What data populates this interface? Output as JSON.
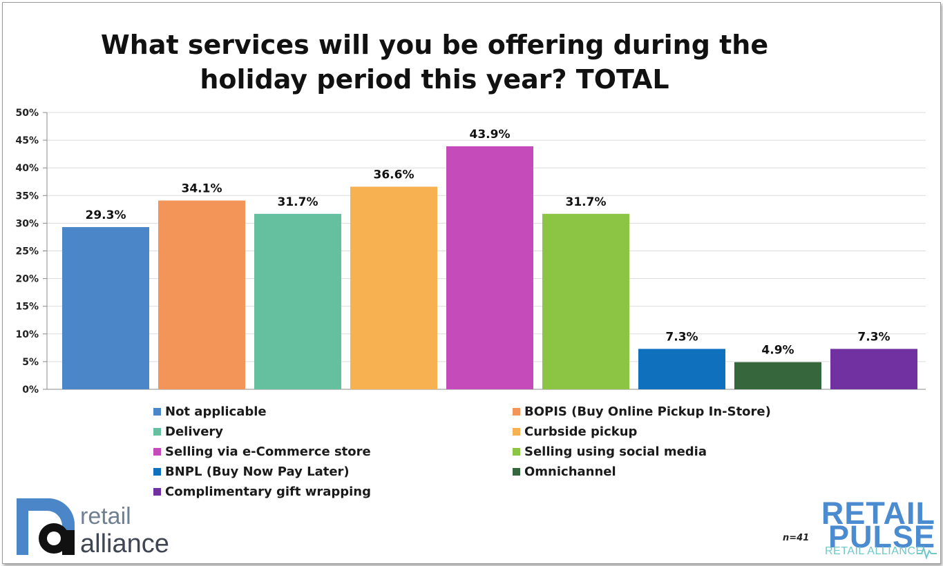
{
  "title_line1": "What services will you be offering during the",
  "title_line2": "holiday period this year? TOTAL",
  "sample_size": "n=41",
  "logos": {
    "left_top": "retail",
    "left_bottom": "alliance",
    "right_line1": "RETAIL",
    "right_line2": "PULSE",
    "right_sub": "RETAIL ALLIANCE"
  },
  "chart_data": {
    "type": "bar",
    "title": "What services will you be offering during the holiday period this year? TOTAL",
    "ylim": [
      0,
      50
    ],
    "yticks": [
      "0%",
      "5%",
      "10%",
      "15%",
      "20%",
      "25%",
      "30%",
      "35%",
      "40%",
      "45%",
      "50%"
    ],
    "grid": true,
    "legend_position": "bottom",
    "series": [
      {
        "name": "Not applicable",
        "value": 29.3,
        "label": "29.3%",
        "color": "#4a86c8"
      },
      {
        "name": "BOPIS (Buy Online Pickup In-Store)",
        "value": 34.1,
        "label": "34.1%",
        "color": "#f39459"
      },
      {
        "name": "Delivery",
        "value": 31.7,
        "label": "31.7%",
        "color": "#65c09f"
      },
      {
        "name": "Curbside pickup",
        "value": 36.6,
        "label": "36.6%",
        "color": "#f8b150"
      },
      {
        "name": "Selling via e-Commerce store",
        "value": 43.9,
        "label": "43.9%",
        "color": "#c64bba"
      },
      {
        "name": "Selling using social media",
        "value": 31.7,
        "label": "31.7%",
        "color": "#8cc443"
      },
      {
        "name": "BNPL (Buy Now Pay Later)",
        "value": 7.3,
        "label": "7.3%",
        "color": "#0f70be"
      },
      {
        "name": "Omnichannel",
        "value": 4.9,
        "label": "4.9%",
        "color": "#35663c"
      },
      {
        "name": "Complimentary gift wrapping",
        "value": 7.3,
        "label": "7.3%",
        "color": "#7231a0"
      }
    ]
  }
}
